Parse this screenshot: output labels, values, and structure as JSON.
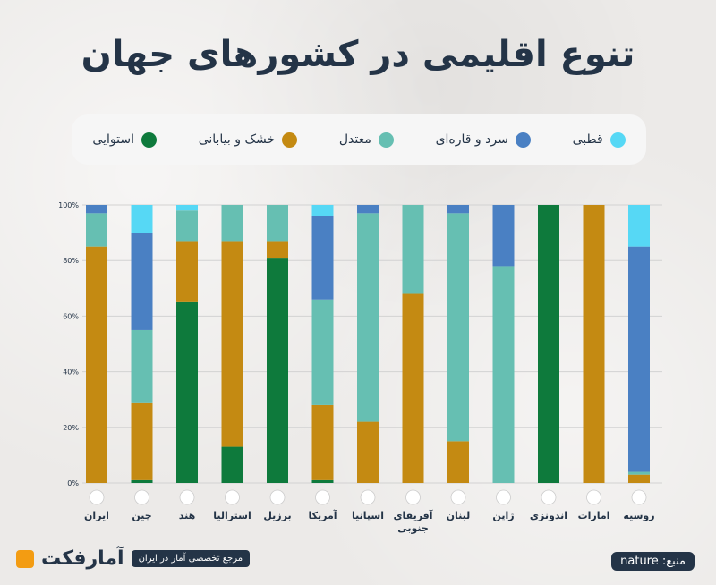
{
  "title": "تنوع اقلیمی در کشورهای جهان",
  "legend": [
    {
      "label": "استوایی",
      "color": "#0e7a3c"
    },
    {
      "label": "خشک و بیابانی",
      "color": "#c48a12"
    },
    {
      "label": "معتدل",
      "color": "#66bfb2"
    },
    {
      "label": "سرد و قاره‌ای",
      "color": "#4a80c3"
    },
    {
      "label": "قطبی",
      "color": "#56d8f5"
    }
  ],
  "chart_data": {
    "type": "bar",
    "stacked": true,
    "categories": [
      "ایران",
      "چین",
      "هند",
      "استرالیا",
      "برزیل",
      "آمریکا",
      "اسپانیا",
      "آفریقای جنوبی",
      "لبنان",
      "ژاپن",
      "اندونزی",
      "امارات",
      "روسیه"
    ],
    "flags": [
      "iran-flag",
      "china-flag",
      "india-flag",
      "australia-flag",
      "brazil-flag",
      "usa-flag",
      "spain-flag",
      "south-africa-flag",
      "lebanon-flag",
      "japan-flag",
      "indonesia-flag",
      "uae-flag",
      "russia-flag"
    ],
    "series": [
      {
        "name": "استوایی",
        "color": "#0e7a3c",
        "values": [
          0,
          1,
          65,
          13,
          81,
          1,
          0,
          0,
          0,
          0,
          100,
          0,
          0
        ]
      },
      {
        "name": "خشک و بیابانی",
        "color": "#c48a12",
        "values": [
          85,
          28,
          22,
          74,
          6,
          27,
          22,
          68,
          15,
          0,
          0,
          100,
          3
        ]
      },
      {
        "name": "معتدل",
        "color": "#66bfb2",
        "values": [
          12,
          26,
          11,
          13,
          13,
          38,
          75,
          32,
          82,
          78,
          0,
          0,
          1
        ]
      },
      {
        "name": "سرد و قاره‌ای",
        "color": "#4a80c3",
        "values": [
          3,
          35,
          0,
          0,
          0,
          30,
          3,
          0,
          3,
          22,
          0,
          0,
          81
        ]
      },
      {
        "name": "قطبی",
        "color": "#56d8f5",
        "values": [
          0,
          10,
          2,
          0,
          0,
          4,
          0,
          0,
          0,
          0,
          0,
          0,
          15
        ]
      }
    ],
    "yticks": [
      "0%",
      "20%",
      "40%",
      "60%",
      "80%",
      "100%"
    ],
    "ylim": [
      0,
      100
    ],
    "grid": true
  },
  "footer": {
    "brand": "آمارفکت",
    "tagline": "مرجع تخصصی آمار در ایران",
    "source": "منبع: nature"
  }
}
